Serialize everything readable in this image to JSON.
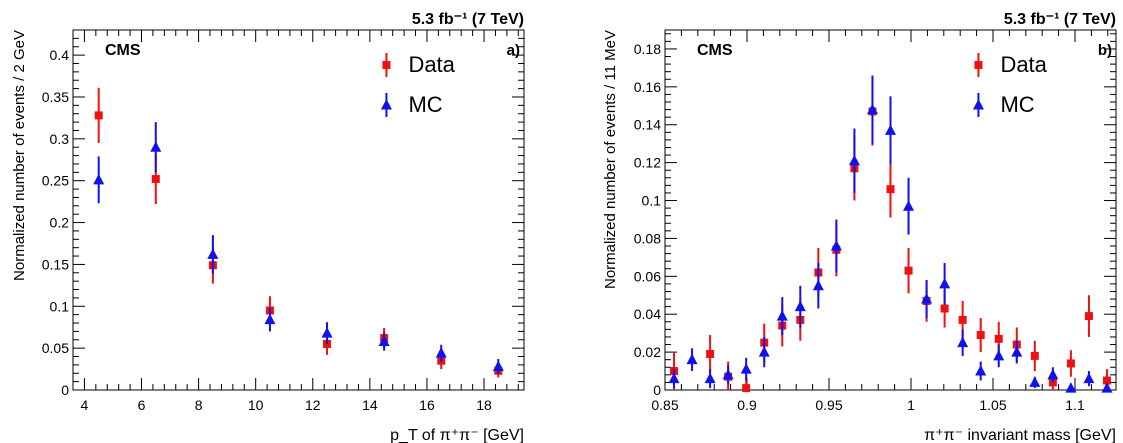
{
  "chart_data": [
    {
      "type": "scatter",
      "title": "",
      "lumi_label": "5.3 fb⁻¹ (7 TeV)",
      "cms_label": "CMS",
      "panel_label": "a)",
      "xlabel": "p_T of π⁺π⁻ [GeV]",
      "ylabel": "Normalized number of events / 2 GeV",
      "xlim": [
        3.6,
        19.4
      ],
      "ylim": [
        0,
        0.43
      ],
      "xticks": [
        4,
        6,
        8,
        10,
        12,
        14,
        16,
        18
      ],
      "xtick_labels": [
        "4",
        "6",
        "8",
        "10",
        "12",
        "14",
        "16",
        "18"
      ],
      "yticks": [
        0,
        0.05,
        0.1,
        0.15,
        0.2,
        0.25,
        0.3,
        0.35,
        0.4
      ],
      "ytick_labels": [
        "0",
        "0.05",
        "0.1",
        "0.15",
        "0.2",
        "0.25",
        "0.3",
        "0.35",
        "0.4"
      ],
      "legend": {
        "position": "top-right",
        "entries": [
          "Data",
          "MC"
        ]
      },
      "series": [
        {
          "name": "Data",
          "marker": "square",
          "color": "#ee1111",
          "x": [
            4.5,
            6.5,
            8.5,
            10.5,
            12.5,
            14.5,
            16.5,
            18.5
          ],
          "y": [
            0.328,
            0.252,
            0.149,
            0.095,
            0.055,
            0.062,
            0.035,
            0.023
          ],
          "err": [
            0.033,
            0.03,
            0.022,
            0.017,
            0.013,
            0.012,
            0.01,
            0.008
          ]
        },
        {
          "name": "MC",
          "marker": "triangle",
          "color": "#1111ee",
          "x": [
            4.5,
            6.5,
            8.5,
            10.5,
            12.5,
            14.5,
            16.5,
            18.5
          ],
          "y": [
            0.251,
            0.29,
            0.162,
            0.084,
            0.068,
            0.058,
            0.044,
            0.028
          ],
          "err": [
            0.028,
            0.03,
            0.023,
            0.014,
            0.013,
            0.011,
            0.01,
            0.009
          ]
        }
      ]
    },
    {
      "type": "scatter",
      "title": "",
      "lumi_label": "5.3 fb⁻¹ (7 TeV)",
      "cms_label": "CMS",
      "panel_label": "b)",
      "xlabel": "π⁺π⁻ invariant mass [GeV]",
      "ylabel": "Normalized number of events / 11 MeV",
      "xlim": [
        0.85,
        1.125
      ],
      "ylim": [
        0,
        0.19
      ],
      "xticks": [
        0.85,
        0.9,
        0.95,
        1.0,
        1.05,
        1.1
      ],
      "xtick_labels": [
        "0.85",
        "0.9",
        "0.95",
        "1",
        "1.05",
        "1.1"
      ],
      "yticks": [
        0,
        0.02,
        0.04,
        0.06,
        0.08,
        0.1,
        0.12,
        0.14,
        0.16,
        0.18
      ],
      "ytick_labels": [
        "0",
        "0.02",
        "0.04",
        "0.06",
        "0.08",
        "0.1",
        "0.12",
        "0.14",
        "0.16",
        "0.18"
      ],
      "legend": {
        "position": "top-right",
        "entries": [
          "Data",
          "MC"
        ]
      },
      "series": [
        {
          "name": "Data",
          "marker": "square",
          "color": "#ee1111",
          "x": [
            0.8555,
            0.8665,
            0.8775,
            0.8885,
            0.8995,
            0.9105,
            0.9215,
            0.9325,
            0.9435,
            0.9545,
            0.9655,
            0.9765,
            0.9875,
            0.9985,
            1.0095,
            1.0205,
            1.0315,
            1.0425,
            1.0535,
            1.0645,
            1.0755,
            1.0865,
            1.0975,
            1.1085,
            1.1195
          ],
          "y": [
            0.01,
            0.0,
            0.019,
            0.007,
            0.001,
            0.025,
            0.034,
            0.037,
            0.062,
            0.074,
            0.117,
            0.147,
            0.106,
            0.063,
            0.047,
            0.043,
            0.037,
            0.029,
            0.027,
            0.024,
            0.018,
            0.004,
            0.014,
            0.039,
            0.005
          ],
          "err": [
            0.01,
            0.0,
            0.01,
            0.008,
            0.006,
            0.01,
            0.011,
            0.011,
            0.013,
            0.014,
            0.017,
            0.018,
            0.015,
            0.012,
            0.011,
            0.01,
            0.01,
            0.009,
            0.009,
            0.009,
            0.008,
            0.006,
            0.007,
            0.011,
            0.006
          ]
        },
        {
          "name": "MC",
          "marker": "triangle",
          "color": "#1111ee",
          "x": [
            0.8555,
            0.8665,
            0.8775,
            0.8885,
            0.8995,
            0.9105,
            0.9215,
            0.9325,
            0.9435,
            0.9545,
            0.9655,
            0.9765,
            0.9875,
            0.9985,
            1.0095,
            1.0205,
            1.0315,
            1.0425,
            1.0535,
            1.0645,
            1.0755,
            1.0865,
            1.0975,
            1.1085,
            1.1195
          ],
          "y": [
            0.006,
            0.016,
            0.006,
            0.008,
            0.011,
            0.02,
            0.039,
            0.044,
            0.055,
            0.076,
            0.121,
            0.148,
            0.137,
            0.097,
            0.048,
            0.056,
            0.025,
            0.01,
            0.018,
            0.02,
            0.004,
            0.008,
            0.001,
            0.006,
            0.001
          ],
          "err": [
            0.005,
            0.006,
            0.005,
            0.005,
            0.006,
            0.008,
            0.01,
            0.011,
            0.012,
            0.014,
            0.017,
            0.018,
            0.018,
            0.015,
            0.01,
            0.011,
            0.007,
            0.005,
            0.006,
            0.006,
            0.003,
            0.004,
            0.002,
            0.004,
            0.002
          ]
        }
      ]
    }
  ]
}
